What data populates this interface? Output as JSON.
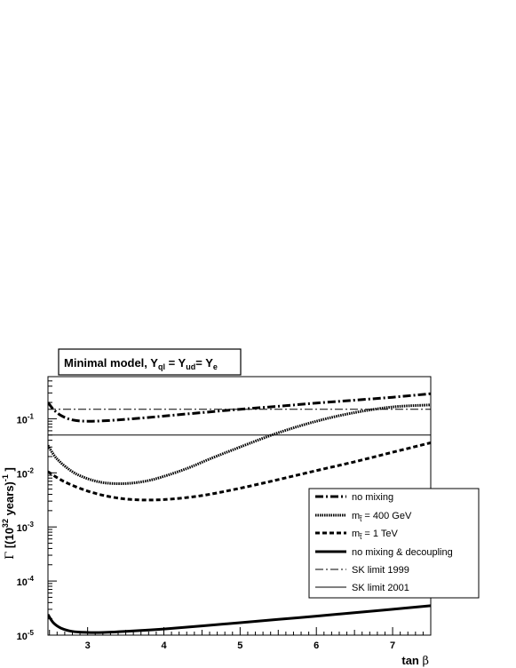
{
  "chart_data": {
    "type": "line",
    "title": {
      "main": "Minimal model,  Y",
      "sub1": "ql",
      "mid1": " = Y",
      "sub2": "ud",
      "mid2": "= Y",
      "sub3": "e"
    },
    "xlabel": {
      "main": "tan ",
      "greek": "β"
    },
    "ylabel": {
      "greek": "Γ",
      "pre": " [(10",
      "sup1": "32",
      "mid": " years)",
      "sup2": "-1",
      "post": " ]"
    },
    "x_ticks": [
      "3",
      "4",
      "5",
      "6",
      "7"
    ],
    "y_ticks": [
      {
        "base": "10",
        "exp": "-5",
        "value": 1e-05
      },
      {
        "base": "10",
        "exp": "-4",
        "value": 0.0001
      },
      {
        "base": "10",
        "exp": "-3",
        "value": 0.001
      },
      {
        "base": "10",
        "exp": "-2",
        "value": 0.01
      },
      {
        "base": "10",
        "exp": "-1",
        "value": 0.1
      }
    ],
    "xlim": [
      2.48,
      7.5
    ],
    "ylim": [
      1e-05,
      0.6
    ],
    "yscale": "log",
    "grid": false,
    "legend_placement": "bottom-right",
    "series": [
      {
        "name": "no mixing",
        "style": "dashdot-thick",
        "x": [
          2.48,
          2.55,
          2.65,
          2.8,
          3.0,
          3.3,
          3.6,
          4.0,
          4.5,
          5.0,
          5.5,
          6.0,
          6.5,
          7.0,
          7.5
        ],
        "y": [
          0.2,
          0.15,
          0.115,
          0.095,
          0.09,
          0.093,
          0.1,
          0.112,
          0.13,
          0.15,
          0.17,
          0.195,
          0.22,
          0.25,
          0.29
        ]
      },
      {
        "name_parts": {
          "pre": "m",
          "sub": "t̃",
          "post": "= 400 GeV"
        },
        "style": "dotted-thick",
        "x": [
          2.48,
          2.6,
          2.8,
          3.0,
          3.2,
          3.4,
          3.6,
          3.8,
          4.0,
          4.3,
          4.6,
          5.0,
          5.5,
          6.0,
          6.5,
          7.0,
          7.5
        ],
        "y": [
          0.032,
          0.018,
          0.0105,
          0.0078,
          0.0066,
          0.0063,
          0.0065,
          0.0072,
          0.0086,
          0.012,
          0.018,
          0.03,
          0.055,
          0.09,
          0.13,
          0.165,
          0.18
        ]
      },
      {
        "name_parts": {
          "pre": "m",
          "sub": "t̃",
          "post": "= 1 TeV"
        },
        "style": "dashed-thick",
        "x": [
          2.48,
          2.7,
          3.0,
          3.3,
          3.6,
          4.0,
          4.5,
          5.0,
          5.5,
          6.0,
          6.5,
          7.0,
          7.5
        ],
        "y": [
          0.0105,
          0.0068,
          0.0046,
          0.0036,
          0.0032,
          0.0032,
          0.0038,
          0.0052,
          0.0075,
          0.011,
          0.016,
          0.024,
          0.036
        ]
      },
      {
        "name": "no mixing & decoupling",
        "style": "solid-thick",
        "x": [
          2.48,
          2.55,
          2.65,
          2.8,
          3.0,
          3.2,
          3.5,
          4.0,
          4.5,
          5.0,
          5.5,
          6.0,
          6.5,
          7.0,
          7.5
        ],
        "y": [
          2.4e-05,
          1.7e-05,
          1.35e-05,
          1.17e-05,
          1.12e-05,
          1.12e-05,
          1.17e-05,
          1.3e-05,
          1.48e-05,
          1.7e-05,
          1.95e-05,
          2.25e-05,
          2.6e-05,
          3e-05,
          3.5e-05
        ]
      },
      {
        "name": "SK limit 1999",
        "style": "dashdot-thin",
        "x": [
          2.48,
          7.5
        ],
        "y": [
          0.15,
          0.15
        ]
      },
      {
        "name": "SK limit 2001",
        "style": "solid-thin",
        "x": [
          2.48,
          7.5
        ],
        "y": [
          0.05,
          0.05
        ]
      }
    ]
  }
}
